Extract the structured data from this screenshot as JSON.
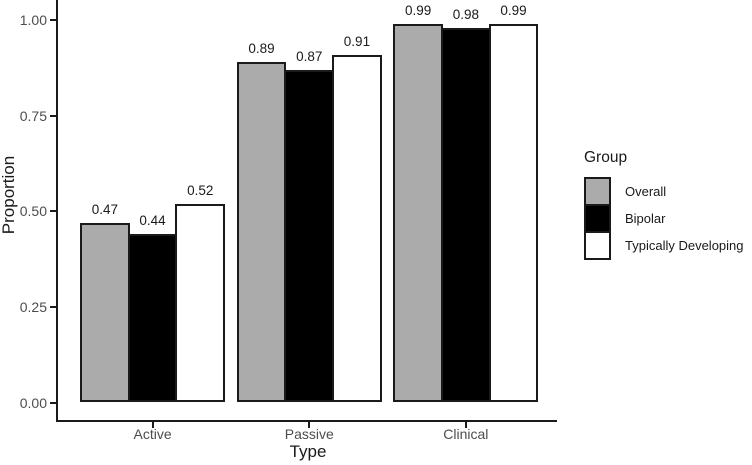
{
  "figure": {
    "background": "#ffffff",
    "axis_line_color": "#1a1a1a",
    "tick_label_color": "#4d4d4d"
  },
  "chart_data": {
    "type": "bar",
    "title": "",
    "categories": [
      "Active",
      "Passive",
      "Clinical"
    ],
    "series": [
      {
        "name": "Overall",
        "fill": "#ababab",
        "values": [
          0.47,
          0.89,
          0.99
        ]
      },
      {
        "name": "Bipolar",
        "fill": "#000000",
        "values": [
          0.44,
          0.87,
          0.98
        ]
      },
      {
        "name": "Typically Developing",
        "fill": "#ffffff",
        "values": [
          0.52,
          0.91,
          0.99
        ]
      }
    ],
    "value_labels": [
      [
        "0.47",
        "0.44",
        "0.52"
      ],
      [
        "0.89",
        "0.87",
        "0.91"
      ],
      [
        "0.99",
        "0.98",
        "0.99"
      ]
    ],
    "xlabel": "Type",
    "ylabel": "Proportion",
    "ylim": [
      0,
      1.05
    ],
    "yticks": [
      {
        "value": 0.0,
        "label": "0.00"
      },
      {
        "value": 0.25,
        "label": "0.25"
      },
      {
        "value": 0.5,
        "label": "0.50"
      },
      {
        "value": 0.75,
        "label": "0.75"
      },
      {
        "value": 1.0,
        "label": "1.00"
      }
    ],
    "grid": false,
    "bar_outline_color": "#1a1a1a",
    "legend": {
      "title": "Group",
      "position": "right"
    }
  }
}
